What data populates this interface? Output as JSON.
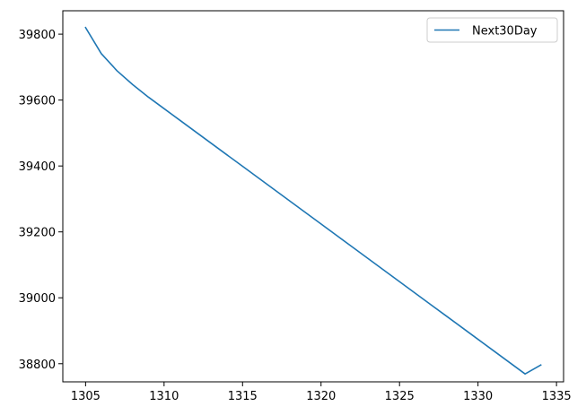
{
  "chart_data": {
    "type": "line",
    "title": "",
    "xlabel": "",
    "ylabel": "",
    "xlim": [
      1303.55,
      1335.45
    ],
    "ylim": [
      38745,
      39871
    ],
    "xticks": [
      1305,
      1310,
      1315,
      1320,
      1325,
      1330,
      1335
    ],
    "yticks": [
      38800,
      39000,
      39200,
      39400,
      39600,
      39800
    ],
    "grid": false,
    "legend": "top-right",
    "series": [
      {
        "name": "Next30Day",
        "color": "#1f77b4",
        "x": [
          1305,
          1306,
          1307,
          1308,
          1309,
          1310,
          1311,
          1312,
          1313,
          1314,
          1315,
          1316,
          1317,
          1318,
          1319,
          1320,
          1321,
          1322,
          1323,
          1324,
          1325,
          1326,
          1327,
          1328,
          1329,
          1330,
          1331,
          1332,
          1333,
          1334
        ],
        "y": [
          39820,
          39741,
          39689,
          39647,
          39609,
          39574,
          39539,
          39504,
          39469,
          39434,
          39399,
          39364,
          39329,
          39294,
          39259,
          39224,
          39189,
          39154,
          39119,
          39084,
          39049,
          39014,
          38979,
          38944,
          38909,
          38874,
          38839,
          38804,
          38769,
          38796
        ]
      }
    ]
  }
}
